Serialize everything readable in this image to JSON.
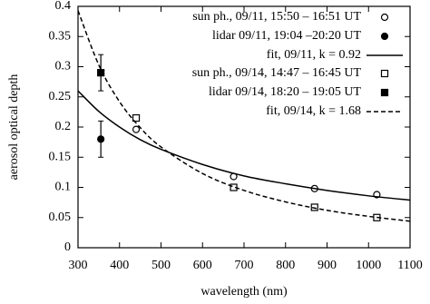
{
  "chart_data": {
    "type": "scatter-fit",
    "x_label": "wavelength (nm)",
    "y_label": "aerosol optical depth",
    "xlim": [
      300,
      1100
    ],
    "xticks": [
      300,
      400,
      500,
      600,
      700,
      800,
      900,
      1000,
      1100
    ],
    "ylim": [
      0,
      0.4
    ],
    "yticks": [
      0,
      0.05,
      0.1,
      0.15,
      0.2,
      0.25,
      0.3,
      0.35,
      0.4
    ],
    "series": [
      {
        "name": "sun ph., 09/11, 15:50 – 16:51 UT",
        "marker": "open-circle",
        "color": "#000000",
        "x": [
          440,
          675,
          870,
          1020
        ],
        "values": [
          0.196,
          0.118,
          0.098,
          0.088
        ]
      },
      {
        "name": "lidar 09/11, 19:04 –20:20 UT",
        "marker": "filled-circle",
        "color": "#000000",
        "x": [
          355
        ],
        "values": [
          0.18
        ],
        "errors": [
          0.03
        ]
      },
      {
        "name": "fit, 09/11, k = 0.92",
        "marker": "solid-line",
        "color": "#000000",
        "x": [
          300,
          350,
          400,
          450,
          500,
          600,
          700,
          800,
          900,
          1000,
          1100
        ],
        "values": [
          0.26,
          0.226,
          0.2,
          0.179,
          0.163,
          0.138,
          0.119,
          0.106,
          0.095,
          0.086,
          0.079
        ]
      },
      {
        "name": "sun ph., 09/14, 14:47 – 16:45 UT",
        "marker": "open-square",
        "color": "#000000",
        "x": [
          440,
          675,
          870,
          1020
        ],
        "values": [
          0.215,
          0.1,
          0.067,
          0.05
        ]
      },
      {
        "name": "lidar 09/14, 18:20 – 19:05 UT",
        "marker": "filled-square",
        "color": "#000000",
        "x": [
          355
        ],
        "values": [
          0.29
        ],
        "errors": [
          0.03
        ]
      },
      {
        "name": "fit, 09/14, k = 1.68",
        "marker": "dashed-line",
        "color": "#000000",
        "x": [
          300,
          350,
          400,
          450,
          500,
          600,
          700,
          800,
          900,
          1000,
          1100
        ],
        "values": [
          0.393,
          0.303,
          0.242,
          0.199,
          0.167,
          0.123,
          0.095,
          0.076,
          0.062,
          0.052,
          0.044
        ]
      }
    ]
  }
}
